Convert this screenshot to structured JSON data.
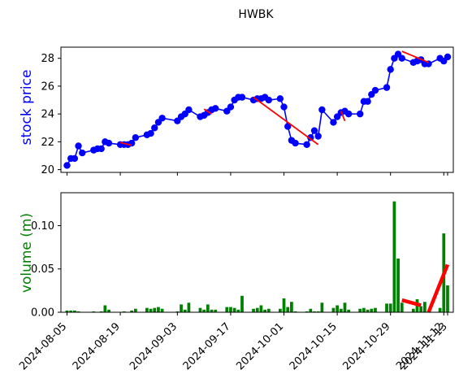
{
  "chart_data": {
    "type": "line",
    "title": "HWBK",
    "x_dates": [
      "2024-08-05",
      "2024-08-06",
      "2024-08-07",
      "2024-08-08",
      "2024-08-09",
      "2024-08-12",
      "2024-08-13",
      "2024-08-14",
      "2024-08-15",
      "2024-08-16",
      "2024-08-19",
      "2024-08-20",
      "2024-08-21",
      "2024-08-22",
      "2024-08-23",
      "2024-08-26",
      "2024-08-27",
      "2024-08-28",
      "2024-08-29",
      "2024-08-30",
      "2024-09-03",
      "2024-09-04",
      "2024-09-05",
      "2024-09-06",
      "2024-09-09",
      "2024-09-10",
      "2024-09-11",
      "2024-09-12",
      "2024-09-13",
      "2024-09-16",
      "2024-09-17",
      "2024-09-18",
      "2024-09-19",
      "2024-09-20",
      "2024-09-23",
      "2024-09-24",
      "2024-09-25",
      "2024-09-26",
      "2024-09-27",
      "2024-09-30",
      "2024-10-01",
      "2024-10-02",
      "2024-10-03",
      "2024-10-04",
      "2024-10-07",
      "2024-10-08",
      "2024-10-09",
      "2024-10-10",
      "2024-10-11",
      "2024-10-14",
      "2024-10-15",
      "2024-10-16",
      "2024-10-17",
      "2024-10-18",
      "2024-10-21",
      "2024-10-22",
      "2024-10-23",
      "2024-10-24",
      "2024-10-25",
      "2024-10-28",
      "2024-10-29",
      "2024-10-30",
      "2024-10-31",
      "2024-11-01",
      "2024-11-04",
      "2024-11-05",
      "2024-11-06",
      "2024-11-07",
      "2024-11-08",
      "2024-11-11",
      "2024-11-12",
      "2024-11-13"
    ],
    "top_panel": {
      "ylabel": "stock price",
      "ylim": [
        19.8,
        28.8
      ],
      "yticks": [
        20,
        22,
        24,
        26,
        28
      ],
      "color": "#0000ff",
      "series": [
        {
          "values": [
            20.3,
            20.8,
            20.8,
            21.7,
            21.2,
            21.4,
            21.5,
            21.5,
            22.0,
            21.9,
            21.8,
            21.8,
            21.8,
            21.9,
            22.3,
            22.5,
            22.6,
            23.0,
            23.4,
            23.7,
            23.5,
            23.8,
            24.0,
            24.3,
            23.8,
            23.9,
            24.1,
            24.3,
            24.4,
            24.2,
            24.5,
            25.0,
            25.2,
            25.2,
            25.0,
            25.1,
            25.1,
            25.2,
            25.0,
            25.1,
            24.5,
            23.1,
            22.1,
            21.9,
            21.8,
            22.3,
            22.8,
            22.4,
            24.3,
            23.4,
            23.8,
            24.1,
            24.2,
            24.0,
            24.0,
            24.9,
            24.9,
            25.4,
            25.7,
            25.9,
            27.2,
            28.0,
            28.3,
            28.0,
            27.7,
            27.8,
            27.9,
            27.6,
            27.6,
            28.0,
            27.8,
            28.1
          ]
        }
      ],
      "trend_segments": [
        {
          "x": [
            "2024-08-19",
            "2024-08-22"
          ],
          "y": [
            21.95,
            21.75
          ]
        },
        {
          "x": [
            "2024-09-10",
            "2024-09-12"
          ],
          "y": [
            24.35,
            24.0
          ]
        },
        {
          "x": [
            "2024-09-23",
            "2024-10-10"
          ],
          "y": [
            25.2,
            21.8
          ]
        },
        {
          "x": [
            "2024-10-16",
            "2024-10-17"
          ],
          "y": [
            24.2,
            23.5
          ]
        },
        {
          "x": [
            "2024-11-01",
            "2024-11-08"
          ],
          "y": [
            28.5,
            27.7
          ]
        }
      ],
      "trend_color": "#ff0000"
    },
    "bottom_panel": {
      "ylabel": "volume (m)",
      "ylim": [
        0,
        0.138
      ],
      "yticks": [
        0.0,
        0.05,
        0.1
      ],
      "ytick_labels": [
        "0.00",
        "0.05",
        "0.10"
      ],
      "color": "#008000",
      "series": [
        {
          "values": [
            0.002,
            0.002,
            0.002,
            0.001,
            0.0,
            0.001,
            0.0,
            0.001,
            0.008,
            0.003,
            0.0,
            0.001,
            0.0,
            0.002,
            0.004,
            0.005,
            0.004,
            0.005,
            0.006,
            0.004,
            0.001,
            0.009,
            0.003,
            0.011,
            0.005,
            0.003,
            0.009,
            0.003,
            0.003,
            0.006,
            0.006,
            0.005,
            0.003,
            0.019,
            0.004,
            0.005,
            0.008,
            0.003,
            0.004,
            0.004,
            0.016,
            0.006,
            0.012,
            0.001,
            0.001,
            0.004,
            0.001,
            0.001,
            0.011,
            0.005,
            0.008,
            0.004,
            0.011,
            0.003,
            0.004,
            0.005,
            0.003,
            0.004,
            0.005,
            0.01,
            0.01,
            0.128,
            0.062,
            0.011,
            0.004,
            0.015,
            0.007,
            0.012,
            0.0,
            0.005,
            0.091,
            0.031
          ]
        }
      ],
      "trend_segments": [
        {
          "x": [
            "2024-11-01",
            "2024-11-06"
          ],
          "y": [
            0.014,
            0.008
          ]
        },
        {
          "x": [
            "2024-11-08",
            "2024-11-13"
          ],
          "y": [
            0.0,
            0.055
          ]
        }
      ],
      "trend_color": "#ff0000"
    },
    "xticks": [
      "2024-08-05",
      "2024-08-19",
      "2024-09-03",
      "2024-09-17",
      "2024-10-01",
      "2024-10-15",
      "2024-10-29",
      "2024-11-12",
      "2024-11-13"
    ],
    "grid": false
  }
}
